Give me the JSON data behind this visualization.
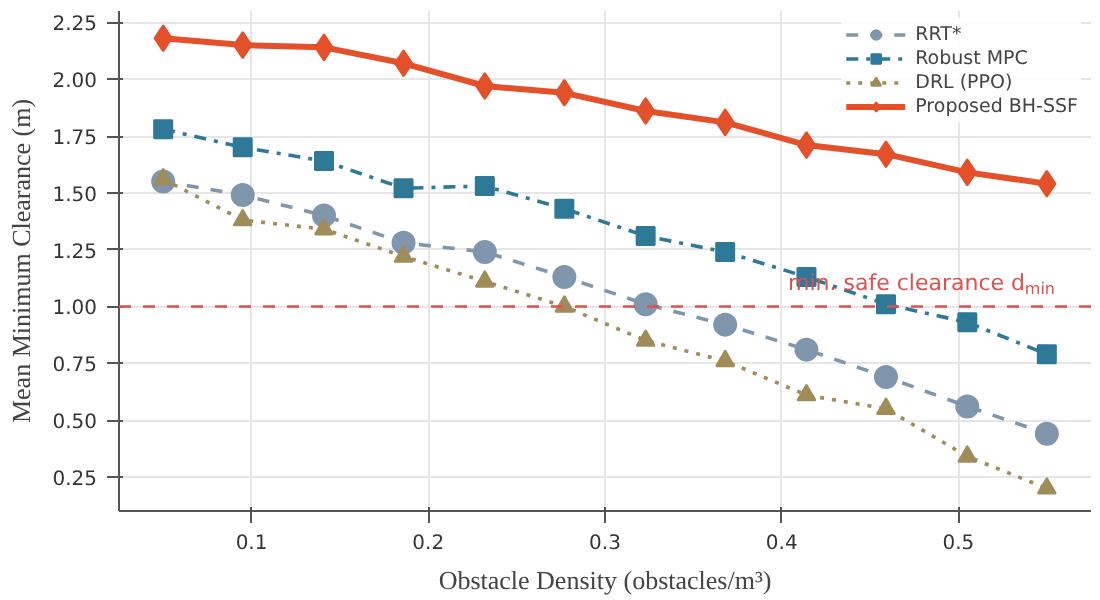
{
  "chart_data": {
    "type": "line",
    "xlabel": "Obstacle Density (obstacles/m³)",
    "ylabel": "Mean Minimum Clearance (m)",
    "x": [
      0.05,
      0.095,
      0.141,
      0.186,
      0.232,
      0.277,
      0.323,
      0.368,
      0.414,
      0.459,
      0.505,
      0.55
    ],
    "series": [
      {
        "name": "RRT*",
        "color": "#7f96ad",
        "marker": "circle",
        "line_style": "dashed",
        "values": [
          1.55,
          1.49,
          1.4,
          1.28,
          1.24,
          1.13,
          1.01,
          0.92,
          0.81,
          0.69,
          0.56,
          0.44
        ]
      },
      {
        "name": "Robust MPC",
        "color": "#2e7898",
        "marker": "square",
        "line_style": "dashdot",
        "values": [
          1.78,
          1.7,
          1.64,
          1.52,
          1.53,
          1.43,
          1.31,
          1.24,
          1.13,
          1.01,
          0.93,
          0.79
        ]
      },
      {
        "name": "DRL (PPO)",
        "color": "#a08c58",
        "marker": "triangle",
        "line_style": "dotted",
        "values": [
          1.56,
          1.38,
          1.34,
          1.22,
          1.11,
          1.0,
          0.85,
          0.76,
          0.61,
          0.55,
          0.34,
          0.2
        ]
      },
      {
        "name": "Proposed BH-SSF",
        "color": "#e4502a",
        "marker": "diamond",
        "line_style": "solid",
        "values": [
          2.18,
          2.15,
          2.14,
          2.07,
          1.97,
          1.94,
          1.86,
          1.81,
          1.71,
          1.67,
          1.59,
          1.54
        ]
      }
    ],
    "xlim": [
      0.025,
      0.575
    ],
    "ylim": [
      0.1,
      2.3
    ],
    "xticks": [
      0.1,
      0.2,
      0.3,
      0.4,
      0.5
    ],
    "yticks": [
      0.25,
      {
        "value": 0.5,
        "label": "0.50"
      },
      0.75,
      {
        "value": 1.0,
        "label": "1.00"
      },
      1.25,
      {
        "value": 1.5,
        "label": "1.50"
      },
      1.75,
      {
        "value": 2.0,
        "label": "2.00"
      },
      2.25
    ],
    "ref_lines": [
      {
        "axis": "y",
        "value": 1.0,
        "label": "min. safe clearance d$_{min}$",
        "color": "#e05050",
        "line_style": "dashed"
      }
    ],
    "grid": true,
    "legend": "top right"
  }
}
